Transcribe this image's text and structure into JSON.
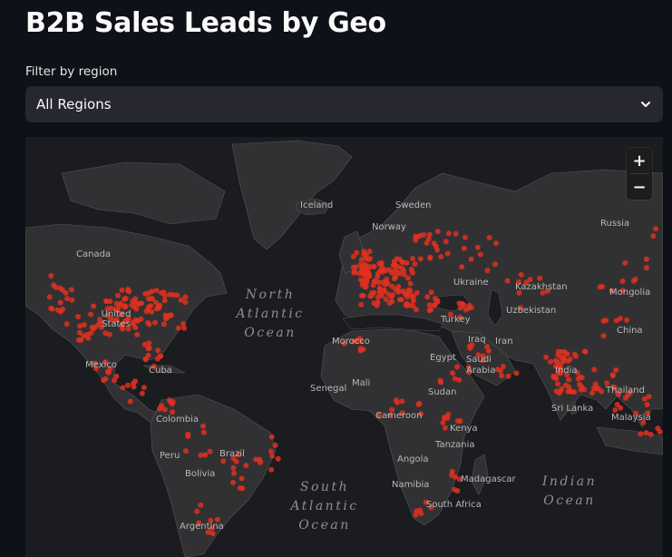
{
  "page": {
    "title": "B2B Sales Leads by Geo"
  },
  "filter": {
    "label": "Filter by region",
    "selected": "All Regions"
  },
  "map": {
    "zoom_in": "+",
    "zoom_out": "−",
    "marker_color": "#e0301e",
    "country_labels": [
      "Iceland",
      "Sweden",
      "Norway",
      "Russia",
      "Canada",
      "Kazakhstan",
      "Mongolia",
      "Ukraine",
      "United States",
      "Uzbekistan",
      "Turkey",
      "China",
      "Morocco",
      "Iraq",
      "Iran",
      "Mexico",
      "Cuba",
      "Egypt",
      "Saudi Arabia",
      "India",
      "Senegal",
      "Mali",
      "Sudan",
      "Thailand",
      "Colombia",
      "Cameroon",
      "Sri Lanka",
      "Kenya",
      "Malaysia",
      "Peru",
      "Brazil",
      "Tanzania",
      "Bolivia",
      "Angola",
      "Madagascar",
      "Namibia",
      "South Africa",
      "Argentina"
    ],
    "oceans": [
      "North Atlantic Ocean",
      "South Atlantic Ocean",
      "Indian Ocean"
    ]
  }
}
